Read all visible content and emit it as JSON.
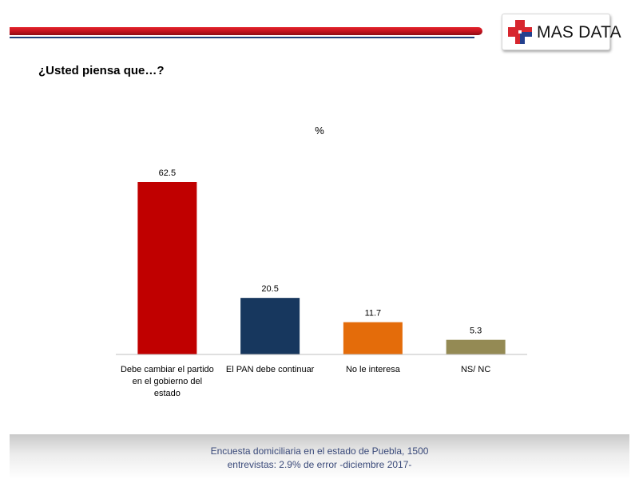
{
  "brand": {
    "logo_text": "MAS DATA",
    "colors": {
      "red": "#d7262e",
      "blue": "#23408e"
    },
    "icon": "medical-cross-icon"
  },
  "question": "¿Usted piensa que…?",
  "chart_data": {
    "type": "bar",
    "title": "%",
    "categories": [
      [
        "Debe cambiar el partido",
        "en el gobierno del",
        "estado"
      ],
      [
        "El PAN debe continuar"
      ],
      [
        "No le interesa"
      ],
      [
        "NS/ NC"
      ]
    ],
    "values": [
      62.5,
      20.5,
      11.7,
      5.3
    ],
    "value_labels": [
      "62.5",
      "20.5",
      "11.7",
      "5.3"
    ],
    "colors": [
      "#c00000",
      "#17375e",
      "#e46c0a",
      "#948a54"
    ],
    "xlabel": "",
    "ylabel": "",
    "ylim": [
      0,
      62.5
    ],
    "grid": false,
    "legend": "none"
  },
  "footer": {
    "lines": [
      "Encuesta domiciliaria en el estado de Puebla, 1500",
      "entrevistas: 2.9% de error -diciembre 2017-"
    ]
  }
}
